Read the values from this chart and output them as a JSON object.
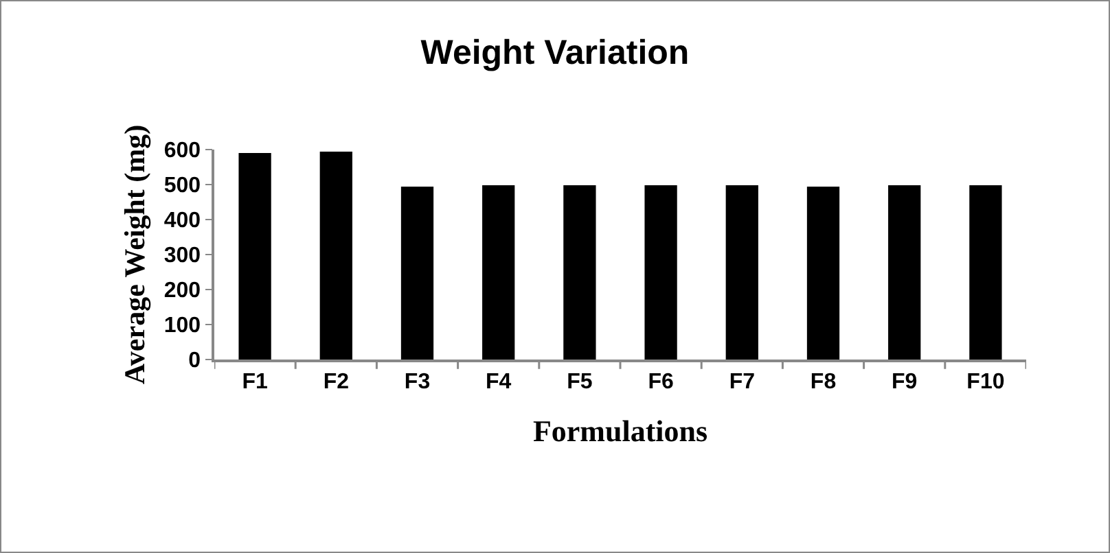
{
  "chart_data": {
    "type": "bar",
    "title": "Weight Variation",
    "xlabel": "Formulations",
    "ylabel": "Average Weight (mg)",
    "categories": [
      "F1",
      "F2",
      "F3",
      "F4",
      "F5",
      "F6",
      "F7",
      "F8",
      "F9",
      "F10"
    ],
    "values": [
      590,
      594,
      494,
      498,
      498,
      498,
      498,
      494,
      498,
      498
    ],
    "color": "#000000",
    "ylim": [
      0,
      600
    ],
    "yticks": [
      0,
      100,
      200,
      300,
      400,
      500,
      600
    ],
    "grid": false
  }
}
